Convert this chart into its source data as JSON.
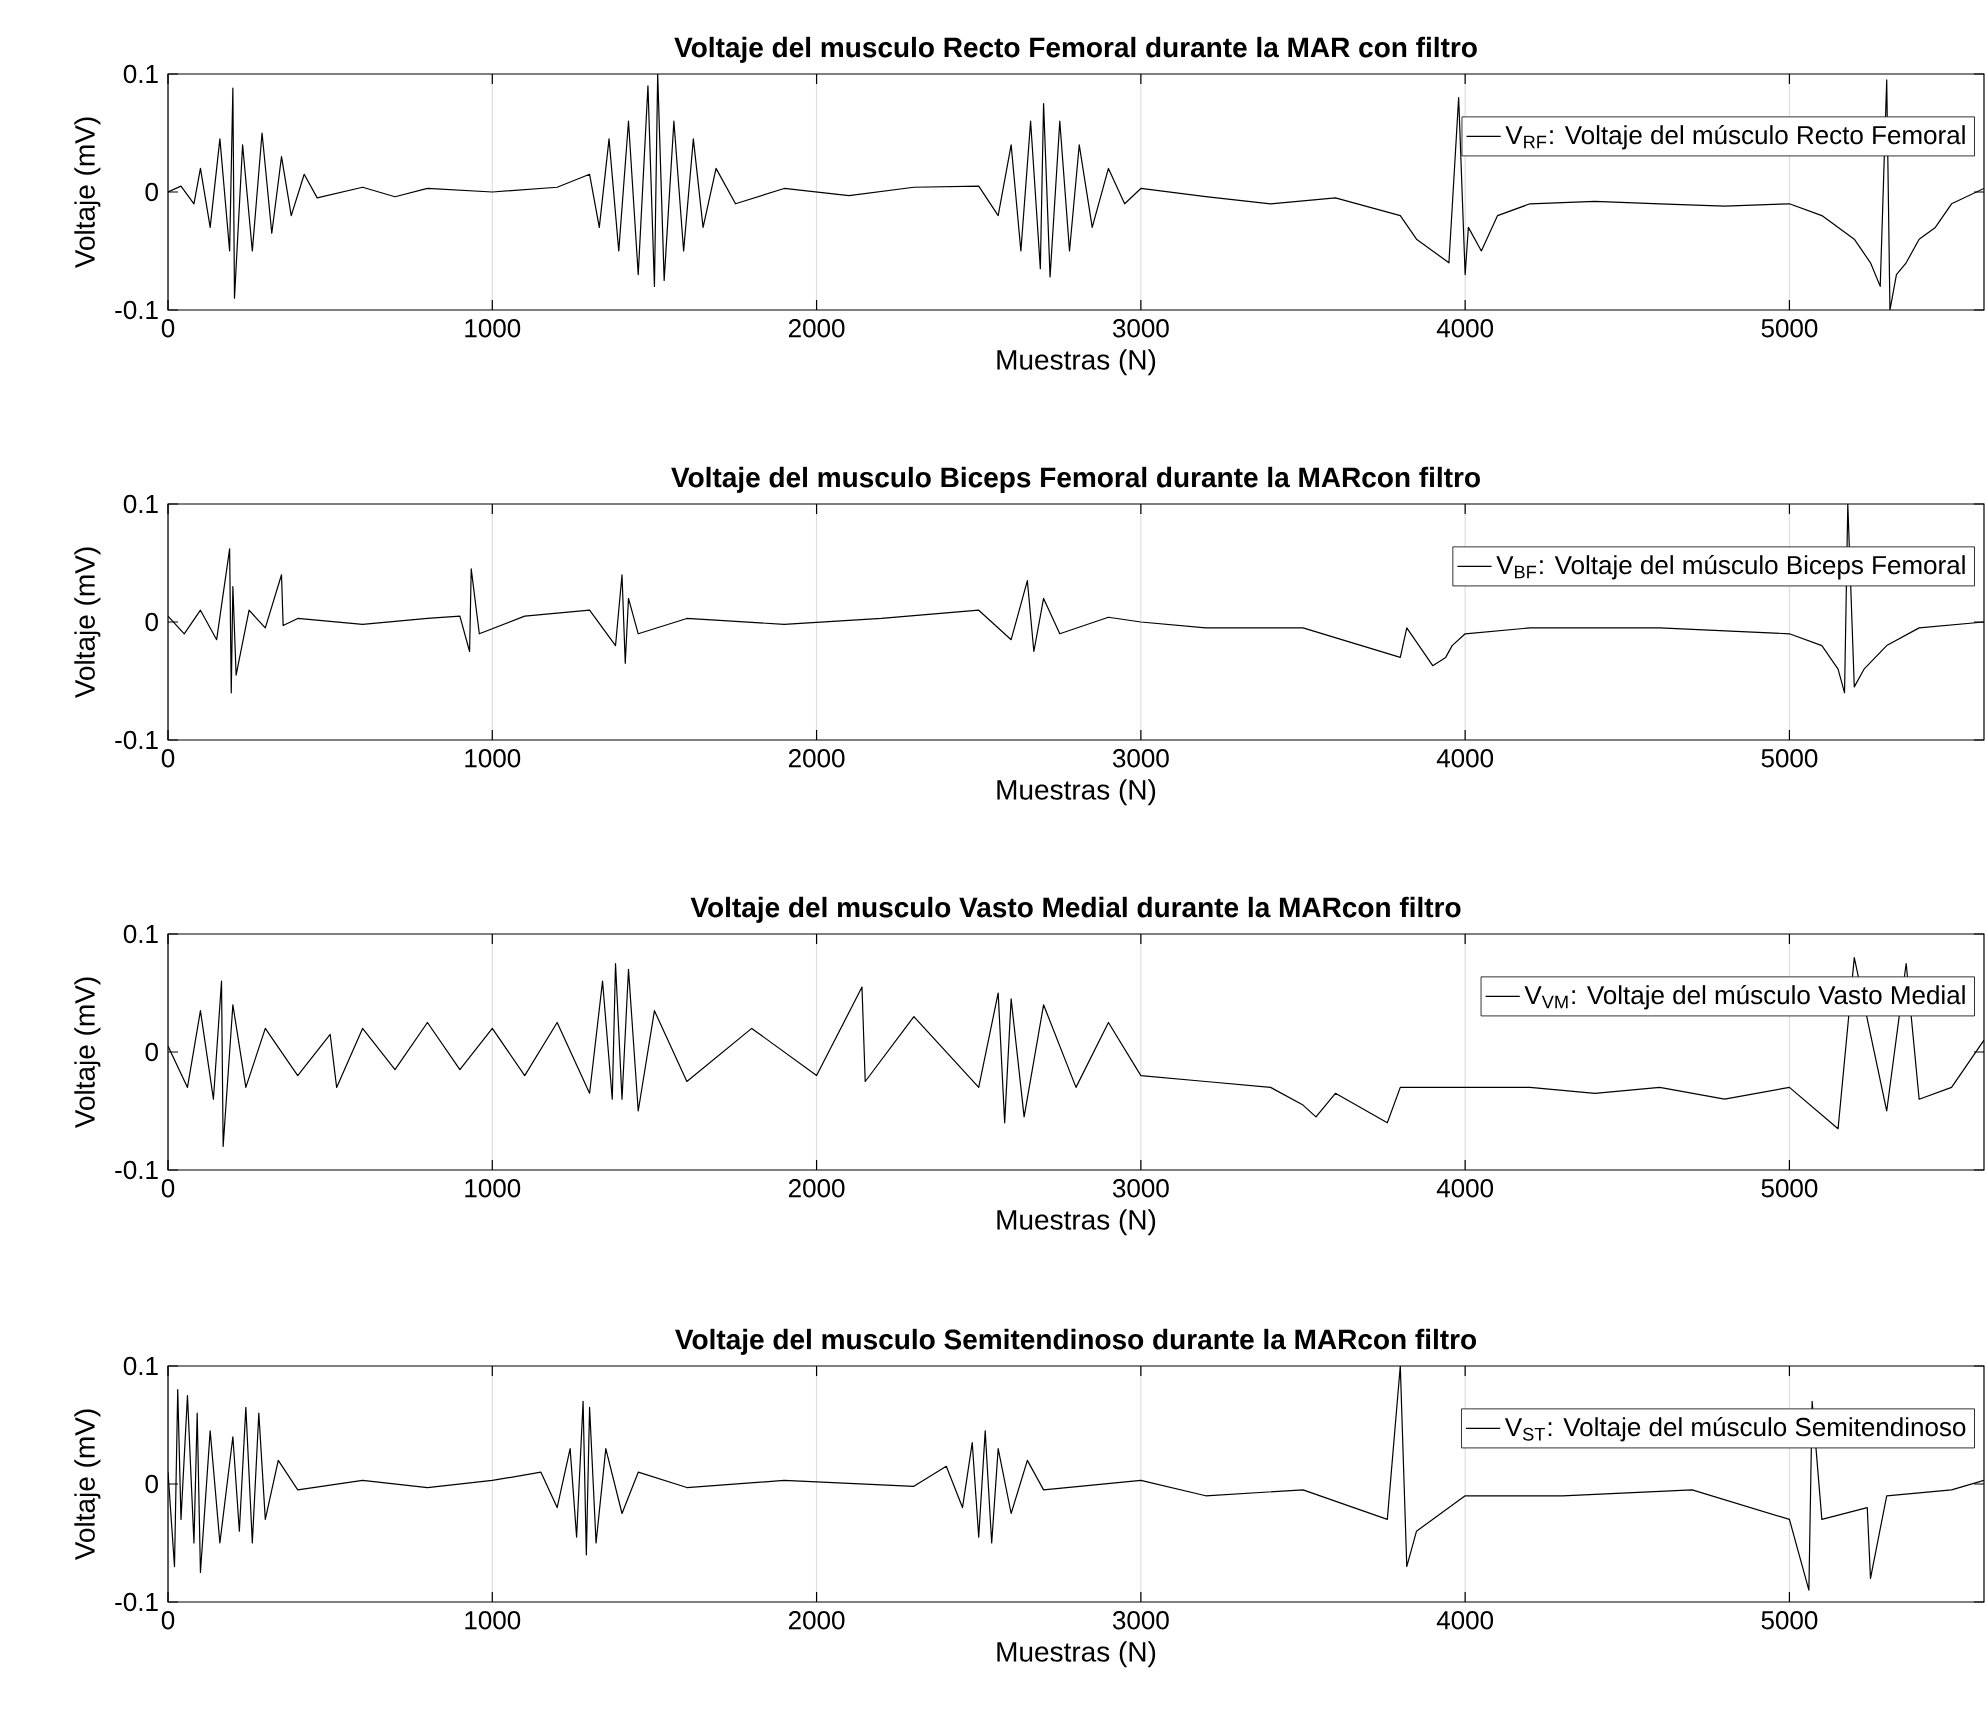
{
  "chart_data": [
    {
      "type": "line",
      "title": "Voltaje del musculo Recto Femoral durante la MAR con filtro",
      "xlabel": "Muestras (N)",
      "ylabel": "Voltaje (mV)",
      "xlim": [
        0,
        5600
      ],
      "xticks": [
        0,
        1000,
        2000,
        3000,
        4000,
        5000
      ],
      "ylim": [
        -0.1,
        0.1
      ],
      "yticks": [
        -0.1,
        0,
        0.1
      ],
      "grid": "x",
      "legend": "top right",
      "series": [
        {
          "name": "V$_{RF}$: Voltaje del músculo Recto Femoral",
          "color": "#000000",
          "x": [
            0,
            40,
            80,
            100,
            130,
            160,
            190,
            200,
            205,
            230,
            260,
            290,
            320,
            350,
            380,
            420,
            460,
            600,
            700,
            800,
            1000,
            1200,
            1300,
            1330,
            1360,
            1390,
            1420,
            1450,
            1480,
            1500,
            1510,
            1530,
            1560,
            1590,
            1620,
            1650,
            1690,
            1750,
            1900,
            2100,
            2300,
            2500,
            2560,
            2600,
            2630,
            2660,
            2690,
            2700,
            2720,
            2750,
            2780,
            2810,
            2850,
            2900,
            2950,
            3000,
            3200,
            3400,
            3600,
            3800,
            3850,
            3900,
            3950,
            3980,
            4000,
            4010,
            4050,
            4100,
            4200,
            4400,
            4600,
            4800,
            5000,
            5100,
            5200,
            5250,
            5280,
            5300,
            5310,
            5330,
            5360,
            5400,
            5450,
            5500,
            5600
          ],
          "values": [
            0,
            0.005,
            -0.01,
            0.02,
            -0.03,
            0.045,
            -0.05,
            0.088,
            -0.09,
            0.04,
            -0.05,
            0.05,
            -0.035,
            0.03,
            -0.02,
            0.015,
            -0.005,
            0.004,
            -0.004,
            0.003,
            0,
            0.004,
            0.015,
            -0.03,
            0.045,
            -0.05,
            0.06,
            -0.07,
            0.09,
            -0.08,
            0.1,
            -0.075,
            0.06,
            -0.05,
            0.045,
            -0.03,
            0.02,
            -0.01,
            0.003,
            -0.003,
            0.004,
            0.005,
            -0.02,
            0.04,
            -0.05,
            0.06,
            -0.065,
            0.075,
            -0.072,
            0.06,
            -0.05,
            0.04,
            -0.03,
            0.02,
            -0.01,
            0.003,
            -0.004,
            -0.01,
            -0.005,
            -0.02,
            -0.04,
            -0.05,
            -0.06,
            0.08,
            -0.07,
            -0.03,
            -0.05,
            -0.02,
            -0.01,
            -0.008,
            -0.01,
            -0.012,
            -0.01,
            -0.02,
            -0.04,
            -0.06,
            -0.08,
            0.095,
            -0.1,
            -0.07,
            -0.06,
            -0.04,
            -0.03,
            -0.01,
            0.003
          ]
        }
      ]
    },
    {
      "type": "line",
      "title": "Voltaje del musculo Biceps Femoral durante la MARcon filtro",
      "xlabel": "Muestras (N)",
      "ylabel": "Voltaje (mV)",
      "xlim": [
        0,
        5600
      ],
      "xticks": [
        0,
        1000,
        2000,
        3000,
        4000,
        5000
      ],
      "ylim": [
        -0.1,
        0.1
      ],
      "yticks": [
        -0.1,
        0,
        0.1
      ],
      "grid": "x",
      "legend": "top right",
      "series": [
        {
          "name": "V$_{BF}$: Voltaje del músculo Biceps Femoral",
          "color": "#000000",
          "x": [
            0,
            50,
            100,
            150,
            190,
            195,
            200,
            210,
            250,
            300,
            350,
            355,
            400,
            600,
            800,
            900,
            930,
            935,
            960,
            1100,
            1300,
            1380,
            1400,
            1410,
            1420,
            1450,
            1600,
            1900,
            2200,
            2500,
            2600,
            2650,
            2670,
            2700,
            2750,
            2900,
            3000,
            3200,
            3500,
            3800,
            3820,
            3900,
            3940,
            3960,
            4000,
            4200,
            4600,
            5000,
            5100,
            5150,
            5170,
            5180,
            5200,
            5230,
            5300,
            5400,
            5600
          ],
          "values": [
            0.005,
            -0.01,
            0.01,
            -0.015,
            0.062,
            -0.06,
            0.03,
            -0.045,
            0.01,
            -0.005,
            0.04,
            -0.003,
            0.003,
            -0.002,
            0.003,
            0.005,
            -0.025,
            0.045,
            -0.01,
            0.005,
            0.01,
            -0.02,
            0.04,
            -0.035,
            0.02,
            -0.01,
            0.003,
            -0.002,
            0.003,
            0.01,
            -0.015,
            0.035,
            -0.025,
            0.02,
            -0.01,
            0.004,
            0,
            -0.005,
            -0.005,
            -0.03,
            -0.005,
            -0.037,
            -0.03,
            -0.02,
            -0.01,
            -0.005,
            -0.005,
            -0.01,
            -0.02,
            -0.04,
            -0.06,
            0.1,
            -0.055,
            -0.04,
            -0.02,
            -0.005,
            0
          ]
        }
      ]
    },
    {
      "type": "line",
      "title": "Voltaje del musculo Vasto Medial durante la MARcon filtro",
      "xlabel": "Muestras (N)",
      "ylabel": "Voltaje (mV)",
      "xlim": [
        0,
        5600
      ],
      "xticks": [
        0,
        1000,
        2000,
        3000,
        4000,
        5000
      ],
      "ylim": [
        -0.1,
        0.1
      ],
      "yticks": [
        -0.1,
        0,
        0.1
      ],
      "grid": "x",
      "legend": "top right",
      "series": [
        {
          "name": "V$_{VM}$: Voltaje del músculo Vasto Medial",
          "color": "#000000",
          "x": [
            0,
            60,
            100,
            140,
            165,
            170,
            200,
            240,
            300,
            400,
            500,
            520,
            600,
            700,
            800,
            900,
            1000,
            1100,
            1200,
            1300,
            1340,
            1370,
            1380,
            1400,
            1420,
            1450,
            1500,
            1600,
            1800,
            2000,
            2140,
            2150,
            2300,
            2500,
            2560,
            2580,
            2600,
            2640,
            2700,
            2800,
            2900,
            3000,
            3200,
            3400,
            3500,
            3540,
            3600,
            3760,
            3800,
            4000,
            4200,
            4400,
            4600,
            4800,
            5000,
            5150,
            5200,
            5300,
            5360,
            5400,
            5500,
            5600
          ],
          "values": [
            0.005,
            -0.03,
            0.035,
            -0.04,
            0.06,
            -0.08,
            0.04,
            -0.03,
            0.02,
            -0.02,
            0.015,
            -0.03,
            0.02,
            -0.015,
            0.025,
            -0.015,
            0.02,
            -0.02,
            0.025,
            -0.035,
            0.06,
            -0.04,
            0.075,
            -0.04,
            0.07,
            -0.05,
            0.035,
            -0.025,
            0.02,
            -0.02,
            0.055,
            -0.025,
            0.03,
            -0.03,
            0.05,
            -0.06,
            0.045,
            -0.055,
            0.04,
            -0.03,
            0.025,
            -0.02,
            -0.025,
            -0.03,
            -0.045,
            -0.055,
            -0.035,
            -0.06,
            -0.03,
            -0.03,
            -0.03,
            -0.035,
            -0.03,
            -0.04,
            -0.03,
            -0.065,
            0.08,
            -0.05,
            0.075,
            -0.04,
            -0.03,
            0.01
          ]
        }
      ]
    },
    {
      "type": "line",
      "title": "Voltaje del musculo Semitendinoso durante la MARcon filtro",
      "xlabel": "Muestras (N)",
      "ylabel": "Voltaje (mV)",
      "xlim": [
        0,
        5600
      ],
      "xticks": [
        0,
        1000,
        2000,
        3000,
        4000,
        5000
      ],
      "ylim": [
        -0.1,
        0.1
      ],
      "yticks": [
        -0.1,
        0,
        0.1
      ],
      "grid": "x",
      "legend": "top right",
      "series": [
        {
          "name": "V$_{ST}$: Voltaje del músculo Semitendinoso",
          "color": "#000000",
          "x": [
            0,
            20,
            30,
            40,
            60,
            80,
            90,
            100,
            130,
            160,
            200,
            220,
            240,
            260,
            280,
            300,
            340,
            400,
            600,
            800,
            1000,
            1150,
            1200,
            1240,
            1260,
            1280,
            1290,
            1300,
            1320,
            1350,
            1400,
            1450,
            1600,
            1900,
            2300,
            2400,
            2450,
            2480,
            2500,
            2520,
            2540,
            2560,
            2600,
            2650,
            2700,
            3000,
            3200,
            3500,
            3760,
            3800,
            3820,
            3850,
            3900,
            4000,
            4300,
            4700,
            5000,
            5060,
            5070,
            5100,
            5240,
            5250,
            5300,
            5500,
            5600
          ],
          "values": [
            0.01,
            -0.07,
            0.08,
            -0.03,
            0.075,
            -0.05,
            0.06,
            -0.075,
            0.045,
            -0.05,
            0.04,
            -0.04,
            0.065,
            -0.05,
            0.06,
            -0.03,
            0.02,
            -0.005,
            0.003,
            -0.003,
            0.003,
            0.01,
            -0.02,
            0.03,
            -0.045,
            0.07,
            -0.06,
            0.065,
            -0.05,
            0.03,
            -0.025,
            0.01,
            -0.003,
            0.003,
            -0.002,
            0.015,
            -0.02,
            0.035,
            -0.045,
            0.045,
            -0.05,
            0.03,
            -0.025,
            0.02,
            -0.005,
            0.003,
            -0.01,
            -0.005,
            -0.03,
            0.1,
            -0.07,
            -0.04,
            -0.03,
            -0.01,
            -0.01,
            -0.005,
            -0.03,
            -0.09,
            0.07,
            -0.03,
            -0.02,
            -0.08,
            -0.01,
            -0.005,
            0.003
          ]
        }
      ]
    }
  ]
}
